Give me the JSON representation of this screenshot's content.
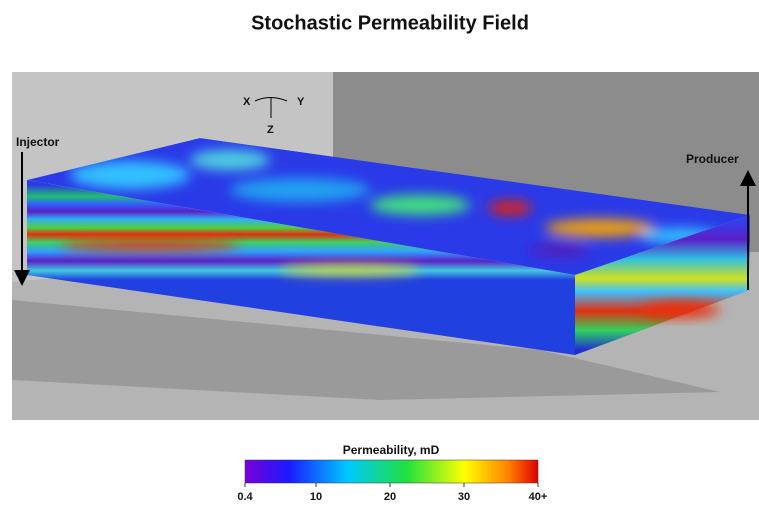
{
  "title": "Stochastic Permeability Field",
  "axes": {
    "x": "X",
    "y": "Y",
    "z": "Z"
  },
  "wells": {
    "injector": "Injector",
    "producer": "Producer"
  },
  "colorbar": {
    "label": "Permeability, mD",
    "lim": [
      0.4,
      40
    ],
    "ticks": [
      0.4,
      10,
      20,
      30,
      {
        "value": 40,
        "label": "40+"
      }
    ]
  }
}
